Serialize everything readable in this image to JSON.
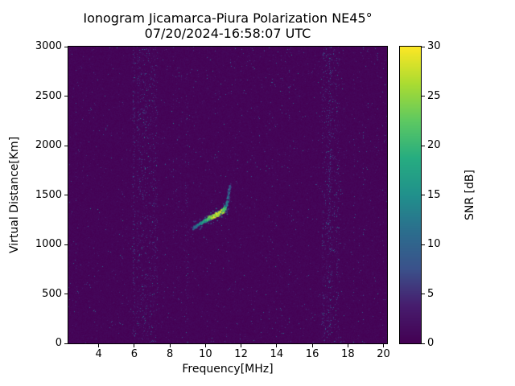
{
  "figure": {
    "background_color": "#ffffff",
    "text_color": "#000000",
    "axes_border_color": "#000000"
  },
  "chart_data": {
    "type": "heatmap",
    "title": "Ionogram Jicamarca-Piura Polarization NE45°",
    "subtitle": "07/20/2024-16:58:07 UTC",
    "xlabel": "Frequency[MHz]",
    "ylabel": "Virtual Distance[Km]",
    "x_range": [
      2.3,
      20.2
    ],
    "y_range": [
      0,
      3000
    ],
    "x_ticks": [
      4,
      6,
      8,
      10,
      12,
      14,
      16,
      18,
      20
    ],
    "y_ticks": [
      0,
      500,
      1000,
      1500,
      2000,
      2500,
      3000
    ],
    "grid": false,
    "legend": false,
    "colormap": "viridis",
    "viridis_stops": [
      "#440154",
      "#471d6e",
      "#3b528b",
      "#2c6e8e",
      "#21918c",
      "#27ad81",
      "#5ec962",
      "#abdc32",
      "#fde725"
    ],
    "colorbar": {
      "label": "SNR [dB]",
      "range": [
        0,
        30
      ],
      "ticks": [
        0,
        5,
        10,
        15,
        20,
        25,
        30
      ],
      "position": "right"
    },
    "background_snr_db": 0,
    "speckle_noise_max_snr_db": 10,
    "noise_bands": [
      {
        "x_start": 6.1,
        "x_end": 7.3,
        "intensity": 0.6,
        "description": "dense vertical interference band"
      },
      {
        "x_start": 5.9,
        "x_end": 6.05,
        "intensity": 0.9,
        "description": "narrow strong streak"
      },
      {
        "x_start": 8.85,
        "x_end": 9.0,
        "intensity": 0.3,
        "description": "faint streak"
      },
      {
        "x_start": 16.5,
        "x_end": 17.5,
        "intensity": 0.5,
        "description": "dense vertical interference band"
      },
      {
        "x_start": 16.9,
        "x_end": 17.0,
        "intensity": 0.9,
        "description": "narrow strong streak"
      }
    ],
    "echo_trace": {
      "description": "ionospheric echo trace, brightest (~30 dB, yellow) near 10.5-10.9 MHz at ~1300 km, rising tail to ~1600 km near 11.35 MHz",
      "freq_mhz": [
        9.3,
        9.6,
        9.9,
        10.2,
        10.5,
        10.7,
        10.9,
        11.0,
        11.1,
        11.2,
        11.3,
        11.35
      ],
      "range_km": [
        1160,
        1195,
        1230,
        1262,
        1290,
        1308,
        1325,
        1340,
        1365,
        1410,
        1490,
        1600
      ],
      "snr_db": [
        10,
        13,
        17,
        22,
        27,
        30,
        29,
        26,
        20,
        15,
        12,
        9
      ]
    }
  }
}
